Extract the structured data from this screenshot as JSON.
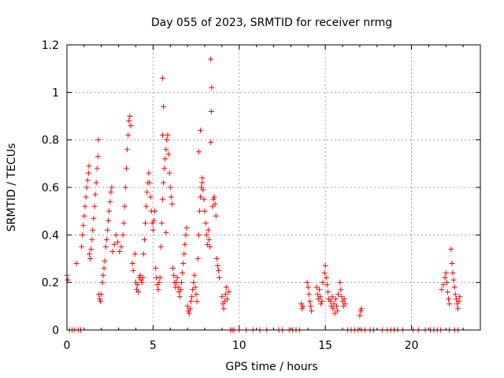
{
  "chart_data": {
    "type": "scatter",
    "title": "Day 055 of 2023, SRMTID for receiver nrmg",
    "xlabel": "GPS time / hours",
    "ylabel": "SRMTID / TECUs",
    "xlim": [
      0,
      24
    ],
    "ylim": [
      0,
      1.2
    ],
    "xticks": [
      0,
      5,
      10,
      15,
      20
    ],
    "xtick_labels": [
      "0",
      "5",
      "10",
      "15",
      "20"
    ],
    "yticks": [
      0,
      0.2,
      0.4,
      0.6,
      0.8,
      1,
      1.2
    ],
    "ytick_labels": [
      "0",
      "0.2",
      "0.4",
      "0.6",
      "0.8",
      "1",
      "1.2"
    ],
    "grid": true,
    "marker": "plus",
    "series": [
      {
        "name": "SRMTID",
        "color": "#ff0000",
        "points": [
          [
            0.0,
            0.23
          ],
          [
            0.05,
            0.21
          ],
          [
            0.15,
            0.0
          ],
          [
            0.3,
            0.0
          ],
          [
            0.45,
            0.0
          ],
          [
            0.55,
            0.28
          ],
          [
            0.65,
            0.0
          ],
          [
            0.8,
            0.0
          ],
          [
            0.85,
            0.35
          ],
          [
            0.9,
            0.4
          ],
          [
            0.95,
            0.44
          ],
          [
            1.0,
            0.48
          ],
          [
            1.05,
            0.52
          ],
          [
            1.1,
            0.56
          ],
          [
            1.15,
            0.6
          ],
          [
            1.2,
            0.63
          ],
          [
            1.25,
            0.66
          ],
          [
            1.28,
            0.69
          ],
          [
            1.3,
            0.32
          ],
          [
            1.35,
            0.3
          ],
          [
            1.4,
            0.34
          ],
          [
            1.45,
            0.38
          ],
          [
            1.5,
            0.42
          ],
          [
            1.55,
            0.47
          ],
          [
            1.6,
            0.52
          ],
          [
            1.65,
            0.57
          ],
          [
            1.7,
            0.62
          ],
          [
            1.75,
            0.68
          ],
          [
            1.8,
            0.73
          ],
          [
            1.82,
            0.8
          ],
          [
            1.85,
            0.15
          ],
          [
            1.9,
            0.13
          ],
          [
            1.95,
            0.12
          ],
          [
            2.0,
            0.15
          ],
          [
            2.05,
            0.2
          ],
          [
            2.1,
            0.23
          ],
          [
            2.15,
            0.26
          ],
          [
            2.2,
            0.29
          ],
          [
            2.25,
            0.35
          ],
          [
            2.3,
            0.38
          ],
          [
            2.35,
            0.42
          ],
          [
            2.4,
            0.46
          ],
          [
            2.45,
            0.5
          ],
          [
            2.5,
            0.54
          ],
          [
            2.55,
            0.58
          ],
          [
            2.6,
            0.6
          ],
          [
            2.65,
            0.33
          ],
          [
            2.75,
            0.36
          ],
          [
            2.85,
            0.4
          ],
          [
            2.95,
            0.37
          ],
          [
            3.05,
            0.33
          ],
          [
            3.15,
            0.35
          ],
          [
            3.25,
            0.4
          ],
          [
            3.3,
            0.45
          ],
          [
            3.35,
            0.52
          ],
          [
            3.4,
            0.6
          ],
          [
            3.45,
            0.68
          ],
          [
            3.5,
            0.76
          ],
          [
            3.55,
            0.82
          ],
          [
            3.6,
            0.88
          ],
          [
            3.65,
            0.9
          ],
          [
            3.7,
            0.86
          ],
          [
            3.8,
            0.28
          ],
          [
            3.85,
            0.25
          ],
          [
            3.95,
            0.32
          ],
          [
            4.0,
            0.2
          ],
          [
            4.05,
            0.17
          ],
          [
            4.1,
            0.19
          ],
          [
            4.15,
            0.16
          ],
          [
            4.2,
            0.22
          ],
          [
            4.25,
            0.23
          ],
          [
            4.3,
            0.21
          ],
          [
            4.35,
            0.2
          ],
          [
            4.4,
            0.22
          ],
          [
            4.45,
            0.32
          ],
          [
            4.5,
            0.38
          ],
          [
            4.55,
            0.45
          ],
          [
            4.6,
            0.52
          ],
          [
            4.65,
            0.58
          ],
          [
            4.7,
            0.62
          ],
          [
            4.75,
            0.66
          ],
          [
            4.8,
            0.62
          ],
          [
            4.85,
            0.56
          ],
          [
            4.9,
            0.5
          ],
          [
            4.95,
            0.45
          ],
          [
            5.0,
            0.42
          ],
          [
            5.05,
            0.46
          ],
          [
            5.1,
            0.5
          ],
          [
            5.15,
            0.26
          ],
          [
            5.2,
            0.22
          ],
          [
            5.25,
            0.19
          ],
          [
            5.3,
            0.17
          ],
          [
            5.35,
            0.2
          ],
          [
            5.4,
            0.22
          ],
          [
            5.45,
            0.35
          ],
          [
            5.5,
            0.45
          ],
          [
            5.55,
            0.55
          ],
          [
            5.6,
            0.62
          ],
          [
            5.65,
            0.68
          ],
          [
            5.7,
            0.72
          ],
          [
            5.75,
            0.76
          ],
          [
            5.8,
            0.8
          ],
          [
            5.85,
            0.82
          ],
          [
            5.9,
            0.74
          ],
          [
            5.95,
            0.66
          ],
          [
            6.0,
            0.6
          ],
          [
            5.55,
            0.82
          ],
          [
            5.6,
            0.94
          ],
          [
            5.55,
            1.06
          ],
          [
            5.75,
            0.41
          ],
          [
            6.05,
            0.56
          ],
          [
            6.1,
            0.53
          ],
          [
            6.15,
            0.26
          ],
          [
            6.2,
            0.23
          ],
          [
            6.25,
            0.2
          ],
          [
            6.3,
            0.18
          ],
          [
            6.35,
            0.2
          ],
          [
            6.4,
            0.22
          ],
          [
            6.45,
            0.18
          ],
          [
            6.5,
            0.16
          ],
          [
            6.55,
            0.14
          ],
          [
            6.6,
            0.17
          ],
          [
            6.65,
            0.2
          ],
          [
            6.7,
            0.24
          ],
          [
            6.75,
            0.28
          ],
          [
            6.8,
            0.32
          ],
          [
            6.85,
            0.36
          ],
          [
            6.9,
            0.4
          ],
          [
            6.95,
            0.43
          ],
          [
            7.0,
            0.1
          ],
          [
            7.05,
            0.08
          ],
          [
            7.1,
            0.07
          ],
          [
            7.15,
            0.09
          ],
          [
            7.2,
            0.12
          ],
          [
            7.25,
            0.14
          ],
          [
            7.3,
            0.17
          ],
          [
            7.35,
            0.2
          ],
          [
            7.4,
            0.23
          ],
          [
            7.45,
            0.18
          ],
          [
            7.5,
            0.15
          ],
          [
            7.55,
            0.12
          ],
          [
            7.6,
            0.3
          ],
          [
            7.65,
            0.4
          ],
          [
            7.7,
            0.5
          ],
          [
            7.75,
            0.56
          ],
          [
            7.8,
            0.6
          ],
          [
            7.85,
            0.62
          ],
          [
            7.9,
            0.59
          ],
          [
            7.95,
            0.55
          ],
          [
            8.0,
            0.5
          ],
          [
            8.05,
            0.45
          ],
          [
            8.1,
            0.4
          ],
          [
            8.15,
            0.36
          ],
          [
            7.65,
            0.75
          ],
          [
            7.75,
            0.84
          ],
          [
            7.85,
            0.64
          ],
          [
            8.2,
            0.42
          ],
          [
            8.25,
            0.38
          ],
          [
            8.3,
            0.35
          ],
          [
            8.35,
            0.79
          ],
          [
            8.38,
            0.92
          ],
          [
            8.4,
            1.02
          ],
          [
            8.35,
            1.14
          ],
          [
            8.45,
            0.52
          ],
          [
            8.5,
            0.55
          ],
          [
            8.55,
            0.56
          ],
          [
            8.6,
            0.53
          ],
          [
            8.65,
            0.48
          ],
          [
            8.7,
            0.3
          ],
          [
            8.75,
            0.27
          ],
          [
            8.8,
            0.25
          ],
          [
            8.85,
            0.22
          ],
          [
            9.0,
            0.14
          ],
          [
            9.05,
            0.11
          ],
          [
            9.1,
            0.09
          ],
          [
            9.15,
            0.12
          ],
          [
            9.2,
            0.15
          ],
          [
            9.25,
            0.18
          ],
          [
            9.3,
            0.13
          ],
          [
            9.4,
            0.16
          ],
          [
            9.5,
            0.0
          ],
          [
            9.6,
            0.0
          ],
          [
            9.7,
            0.0
          ],
          [
            10.0,
            0.0
          ],
          [
            10.4,
            0.0
          ],
          [
            10.8,
            0.0
          ],
          [
            11.2,
            0.0
          ],
          [
            11.6,
            0.0
          ],
          [
            12.3,
            0.0
          ],
          [
            12.5,
            0.0
          ],
          [
            12.9,
            0.0
          ],
          [
            13.1,
            0.0
          ],
          [
            13.3,
            0.0
          ],
          [
            13.5,
            0.0
          ],
          [
            13.6,
            0.11
          ],
          [
            13.65,
            0.09
          ],
          [
            13.7,
            0.1
          ],
          [
            13.95,
            0.2
          ],
          [
            14.0,
            0.18
          ],
          [
            14.05,
            0.15
          ],
          [
            14.1,
            0.12
          ],
          [
            14.15,
            0.1
          ],
          [
            14.2,
            0.08
          ],
          [
            14.5,
            0.18
          ],
          [
            14.55,
            0.15
          ],
          [
            14.6,
            0.13
          ],
          [
            14.65,
            0.17
          ],
          [
            14.7,
            0.14
          ],
          [
            14.75,
            0.11
          ],
          [
            14.8,
            0.12
          ],
          [
            14.85,
            0.2
          ],
          [
            14.95,
            0.24
          ],
          [
            15.0,
            0.27
          ],
          [
            15.05,
            0.22
          ],
          [
            15.1,
            0.19
          ],
          [
            15.15,
            0.16
          ],
          [
            15.2,
            0.13
          ],
          [
            15.3,
            0.12
          ],
          [
            15.35,
            0.1
          ],
          [
            15.4,
            0.14
          ],
          [
            15.45,
            0.09
          ],
          [
            15.5,
            0.11
          ],
          [
            15.55,
            0.07
          ],
          [
            15.6,
            0.13
          ],
          [
            15.65,
            0.1
          ],
          [
            15.7,
            0.08
          ],
          [
            15.75,
            0.15
          ],
          [
            15.85,
            0.2
          ],
          [
            15.9,
            0.17
          ],
          [
            15.95,
            0.14
          ],
          [
            16.0,
            0.12
          ],
          [
            16.05,
            0.1
          ],
          [
            16.1,
            0.13
          ],
          [
            16.15,
            0.11
          ],
          [
            16.3,
            0.0
          ],
          [
            16.5,
            0.0
          ],
          [
            16.7,
            0.0
          ],
          [
            16.9,
            0.0
          ],
          [
            17.0,
            0.06
          ],
          [
            17.05,
            0.08
          ],
          [
            17.1,
            0.09
          ],
          [
            17.1,
            0.0
          ],
          [
            17.3,
            0.0
          ],
          [
            17.6,
            0.0
          ],
          [
            17.8,
            0.0
          ],
          [
            18.3,
            0.0
          ],
          [
            18.6,
            0.0
          ],
          [
            18.8,
            0.0
          ],
          [
            19.0,
            0.0
          ],
          [
            19.2,
            0.0
          ],
          [
            19.5,
            0.0
          ],
          [
            20.1,
            0.0
          ],
          [
            20.4,
            0.0
          ],
          [
            20.8,
            0.0
          ],
          [
            21.1,
            0.0
          ],
          [
            21.3,
            0.0
          ],
          [
            21.5,
            0.0
          ],
          [
            21.7,
            0.0
          ],
          [
            21.75,
            0.17
          ],
          [
            21.85,
            0.19
          ],
          [
            21.95,
            0.22
          ],
          [
            22.0,
            0.24
          ],
          [
            22.05,
            0.2
          ],
          [
            22.1,
            0.16
          ],
          [
            22.15,
            0.13
          ],
          [
            22.2,
            0.11
          ],
          [
            22.3,
            0.34
          ],
          [
            22.35,
            0.28
          ],
          [
            22.4,
            0.24
          ],
          [
            22.45,
            0.21
          ],
          [
            22.5,
            0.18
          ],
          [
            22.55,
            0.15
          ],
          [
            22.6,
            0.13
          ],
          [
            22.65,
            0.11
          ],
          [
            22.7,
            0.09
          ],
          [
            22.75,
            0.12
          ],
          [
            22.8,
            0.14
          ],
          [
            22.2,
            0.0
          ],
          [
            22.5,
            0.0
          ],
          [
            22.7,
            0.0
          ]
        ]
      }
    ]
  }
}
